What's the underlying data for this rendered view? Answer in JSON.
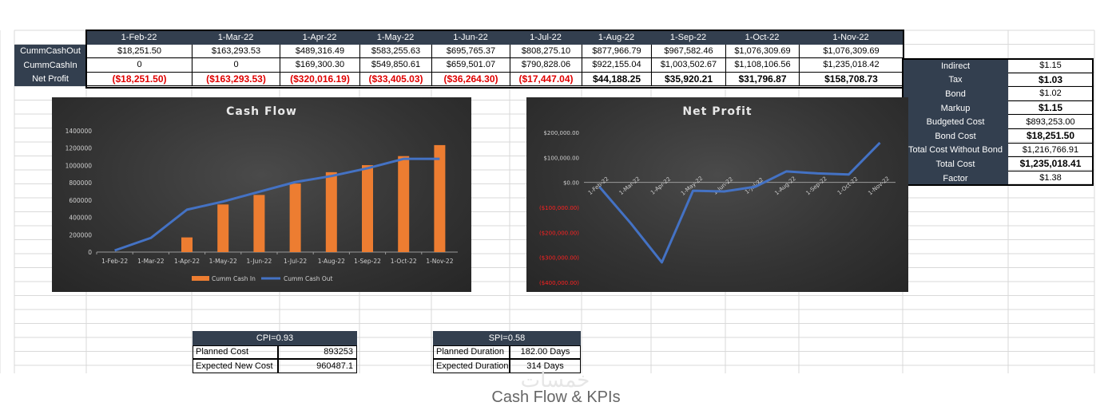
{
  "sheet": {
    "months": [
      "1-Feb-22",
      "1-Mar-22",
      "1-Apr-22",
      "1-May-22",
      "1-Jun-22",
      "1-Jul-22",
      "1-Aug-22",
      "1-Sep-22",
      "1-Oct-22",
      "1-Nov-22"
    ],
    "rows": [
      {
        "label": "CummCashOut",
        "values": [
          "$18,251.50",
          "$163,293.53",
          "$489,316.49",
          "$583,255.63",
          "$695,765.37",
          "$808,275.10",
          "$877,966.79",
          "$967,582.46",
          "$1,076,309.69",
          "$1,076,309.69"
        ],
        "negative": [
          false,
          false,
          false,
          false,
          false,
          false,
          false,
          false,
          false,
          false
        ],
        "bold": false
      },
      {
        "label": "CummCashIn",
        "values": [
          "0",
          "0",
          "$169,300.30",
          "$549,850.61",
          "$659,501.07",
          "$790,828.06",
          "$922,155.04",
          "$1,003,502.67",
          "$1,108,106.56",
          "$1,235,018.42"
        ],
        "negative": [
          false,
          false,
          false,
          false,
          false,
          false,
          false,
          false,
          false,
          false
        ],
        "bold": false
      },
      {
        "label": "Net Profit",
        "values": [
          "($18,251.50)",
          "($163,293.53)",
          "($320,016.19)",
          "($33,405.03)",
          "($36,264.30)",
          "($17,447.04)",
          "$44,188.25",
          "$35,920.21",
          "$31,796.87",
          "$158,708.73"
        ],
        "negative": [
          true,
          true,
          true,
          true,
          true,
          true,
          false,
          false,
          false,
          false
        ],
        "bold": true
      }
    ]
  },
  "params": [
    {
      "label": "Indirect",
      "value": "$1.15",
      "bold": false
    },
    {
      "label": "Tax",
      "value": "$1.03",
      "bold": true
    },
    {
      "label": "Bond",
      "value": "$1.02",
      "bold": false
    },
    {
      "label": "Markup",
      "value": "$1.15",
      "bold": true
    },
    {
      "label": "Budgeted Cost",
      "value": "$893,253.00",
      "bold": false
    },
    {
      "label": "Bond Cost",
      "value": "$18,251.50",
      "bold": true
    },
    {
      "label": "Total Cost Without Bond",
      "value": "$1,216,766.91",
      "bold": false
    },
    {
      "label": "Total Cost",
      "value": "$1,235,018.41",
      "bold": true
    },
    {
      "label": "Factor",
      "value": "$1.38",
      "bold": false
    }
  ],
  "cpi": {
    "header": "CPI=0.93",
    "rows": [
      {
        "label": "Planned Cost",
        "value": "893253"
      },
      {
        "label": "Expected New Cost",
        "value": "960487.1"
      }
    ]
  },
  "spi": {
    "header": "SPI=0.58",
    "rows": [
      {
        "label": "Planned Duration",
        "value": "182.00 Days"
      },
      {
        "label": "Expected Duration",
        "value": "314 Days"
      }
    ]
  },
  "colors": {
    "header_bg": "#333f4f",
    "bar": "#ed7d31",
    "line": "#4472c4",
    "negative_text": "#e00000"
  },
  "chart_data": [
    {
      "type": "bar",
      "title": "Cash Flow",
      "categories": [
        "1-Feb-22",
        "1-Mar-22",
        "1-Apr-22",
        "1-May-22",
        "1-Jun-22",
        "1-Jul-22",
        "1-Aug-22",
        "1-Sep-22",
        "1-Oct-22",
        "1-Nov-22"
      ],
      "series": [
        {
          "name": "Cumm Cash In",
          "kind": "bar",
          "values": [
            0,
            0,
            169300.3,
            549850.61,
            659501.07,
            790828.06,
            922155.04,
            1003502.67,
            1108106.56,
            1235018.42
          ]
        },
        {
          "name": "Cumm Cash Out",
          "kind": "line",
          "values": [
            18251.5,
            163293.53,
            489316.49,
            583255.63,
            695765.37,
            808275.1,
            877966.79,
            967582.46,
            1076309.69,
            1076309.69
          ]
        }
      ],
      "yticks": [
        "0",
        "200000",
        "400000",
        "600000",
        "800000",
        "1000000",
        "1200000",
        "1400000"
      ],
      "ylim": [
        0,
        1400000
      ],
      "legend": "bottom"
    },
    {
      "type": "line",
      "title": "Net Profit",
      "categories": [
        "1-Feb-22",
        "1-Mar-22",
        "1-Apr-22",
        "1-May-22",
        "1-Jun-22",
        "1-Jul-22",
        "1-Aug-22",
        "1-Sep-22",
        "1-Oct-22",
        "1-Nov-22"
      ],
      "series": [
        {
          "values": [
            -18251.5,
            -163293.53,
            -320016.19,
            -33405.03,
            -36264.3,
            -17447.04,
            44188.25,
            35920.21,
            31796.87,
            158708.73
          ]
        }
      ],
      "yticks": [
        "$200,000.00",
        "$100,000.00",
        "$0.00",
        "($100,000.00)",
        "($200,000.00)",
        "($300,000.00)",
        "($400,000.00)"
      ],
      "ylim": [
        -400000,
        200000
      ]
    }
  ],
  "caption": "Cash Flow & KPIs",
  "watermark": "خمسات"
}
